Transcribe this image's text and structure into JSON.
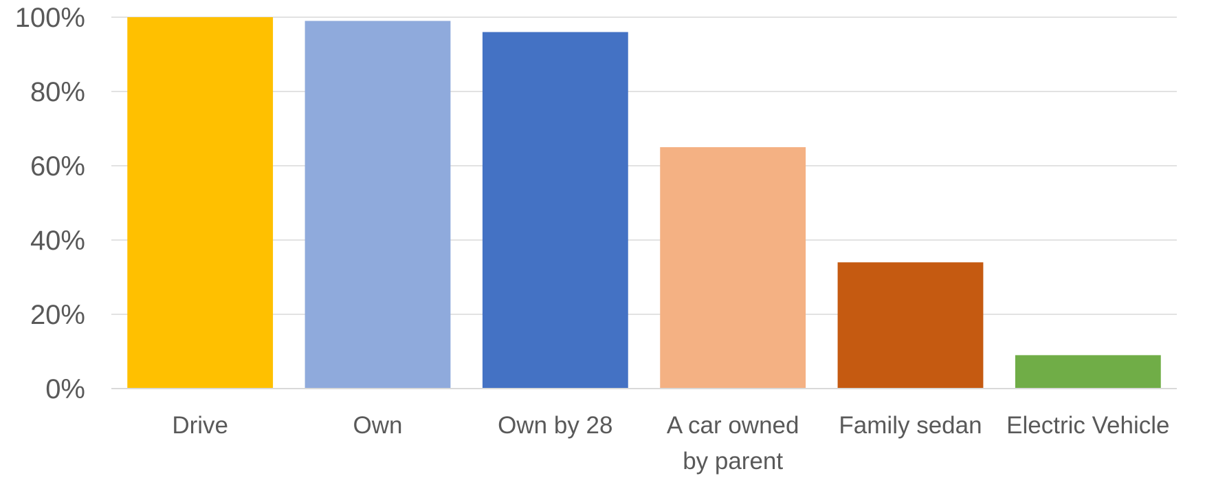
{
  "chart_data": {
    "type": "bar",
    "title": "",
    "xlabel": "",
    "ylabel": "",
    "ylim": [
      0,
      100
    ],
    "y_ticks": [
      0,
      20,
      40,
      60,
      80,
      100
    ],
    "y_tick_labels": [
      "0%",
      "20%",
      "40%",
      "60%",
      "80%",
      "100%"
    ],
    "grid": true,
    "legend": "none",
    "categories": [
      [
        "Drive"
      ],
      [
        "Own"
      ],
      [
        "Own by 28"
      ],
      [
        "A car owned",
        "by parent"
      ],
      [
        "Family sedan"
      ],
      [
        "Electric Vehicle"
      ]
    ],
    "values": [
      100,
      99,
      96,
      65,
      34,
      9
    ],
    "colors": [
      "#FFC000",
      "#8FAADC",
      "#4472C4",
      "#F4B183",
      "#C55A11",
      "#70AD47"
    ]
  }
}
